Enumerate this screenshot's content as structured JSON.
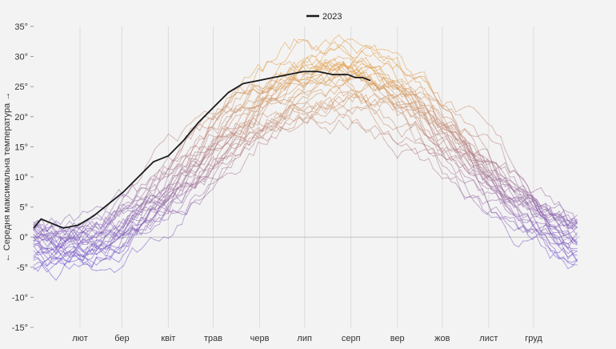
{
  "chart_data": {
    "type": "line",
    "title": "",
    "xlabel": "",
    "ylabel": "← Середня максимальна температура →",
    "ylim": [
      -15,
      35
    ],
    "yticks": [
      -15,
      -10,
      -5,
      0,
      5,
      10,
      15,
      20,
      25,
      30,
      35
    ],
    "ytick_labels": [
      "-15°",
      "-10°",
      "-5°",
      "0°",
      "5°",
      "10°",
      "15°",
      "20°",
      "25°",
      "30°",
      "35°"
    ],
    "xlim": [
      0,
      365
    ],
    "month_ticks": [
      31,
      59,
      90,
      120,
      151,
      181,
      212,
      243,
      273,
      304,
      334
    ],
    "month_labels": [
      "лют",
      "бер",
      "квіт",
      "трав",
      "черв",
      "лип",
      "серп",
      "вер",
      "жов",
      "лист",
      "груд"
    ],
    "grid": "vertical",
    "zero_line": true,
    "historical_count": 30,
    "historical_note": "faint lines for earlier years, colour shifting from purple (cold) to orange (hot)",
    "color_cold": "#6d4fd3",
    "color_hot": "#e3a04a",
    "highlight": {
      "name": "2023",
      "color": "#1a1a1a",
      "x": [
        0,
        5,
        10,
        20,
        30,
        40,
        50,
        60,
        70,
        80,
        90,
        100,
        110,
        120,
        130,
        140,
        150,
        160,
        170,
        180,
        190,
        200,
        210,
        215,
        220,
        225
      ],
      "y": [
        1.5,
        3,
        2.5,
        1.5,
        2,
        3.5,
        5.5,
        7.5,
        10,
        12.5,
        13.5,
        16,
        19,
        21.5,
        24,
        25.5,
        26,
        26.5,
        27,
        27.5,
        27.5,
        27,
        27,
        26.5,
        26.5,
        26
      ]
    },
    "legend": {
      "position": "top-center",
      "entries": [
        "2023"
      ]
    }
  }
}
